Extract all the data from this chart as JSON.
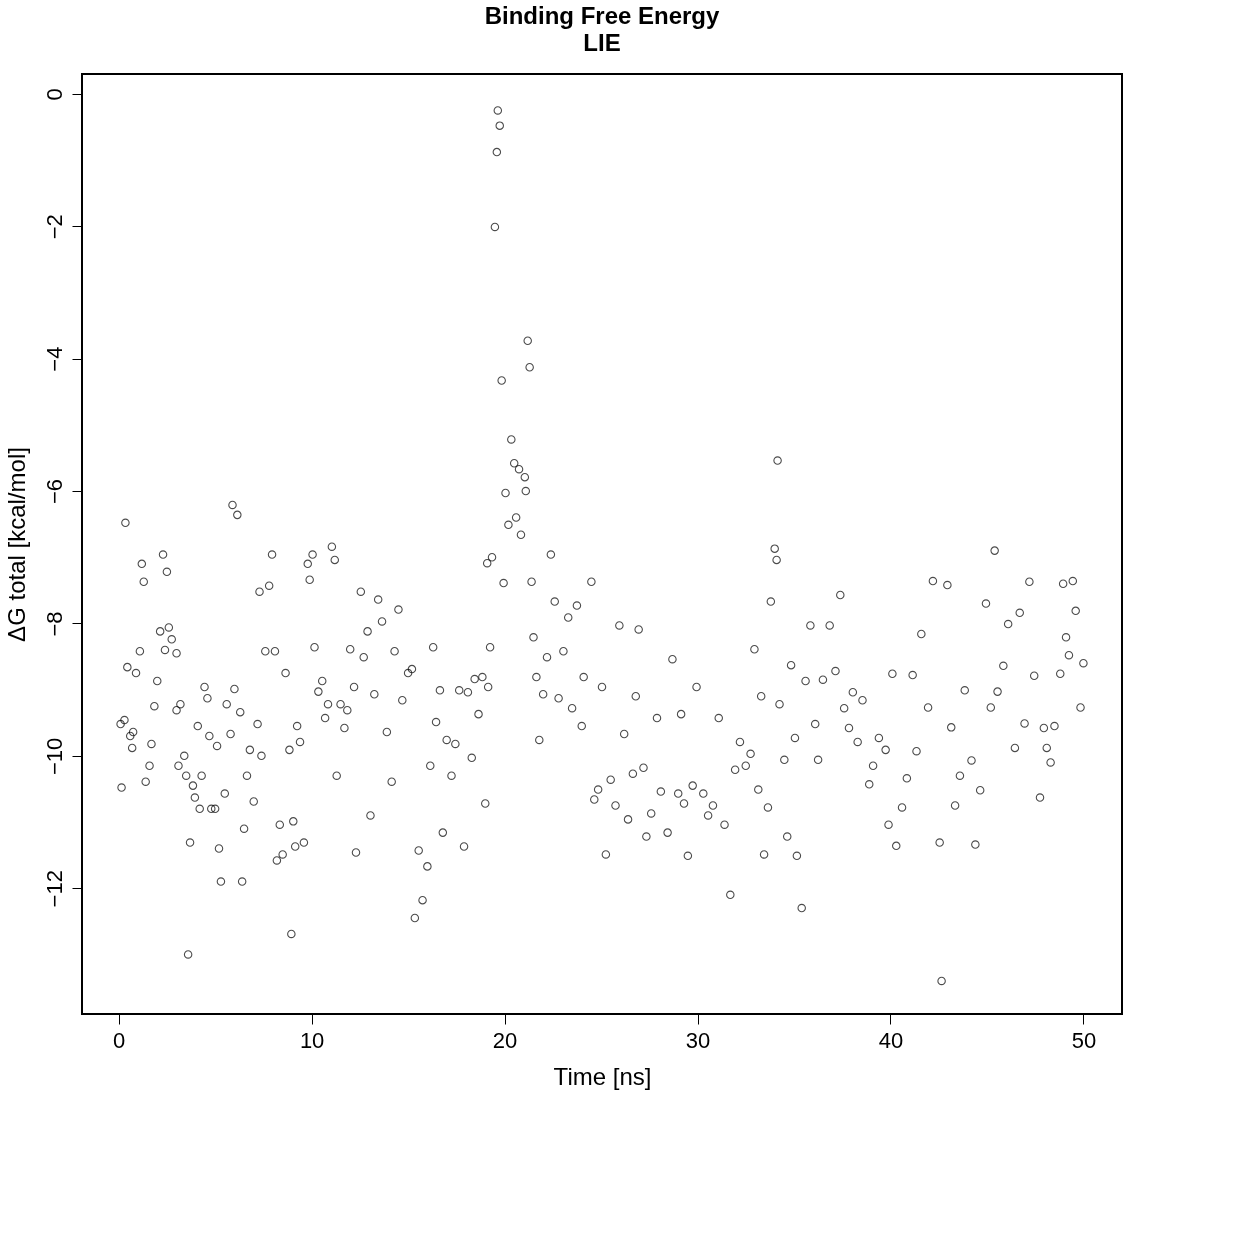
{
  "chart_data": {
    "type": "scatter",
    "title": "Binding Free Energy",
    "subtitle": "LIE",
    "xlabel": "Time [ns]",
    "ylabel": "ΔG total [kcal/mol]",
    "xlim": [
      -1.9,
      52.0
    ],
    "ylim": [
      -13.9,
      0.3
    ],
    "xticks": [
      0,
      10,
      20,
      30,
      40,
      50
    ],
    "yticks": [
      0,
      -2,
      -4,
      -6,
      -8,
      -10,
      -12
    ],
    "grid": false,
    "legend": false,
    "marker": "circle",
    "series": [
      {
        "color": "#000000",
        "x": [
          0.15,
          0.1,
          0.3,
          0.35,
          0.45,
          0.6,
          0.75,
          0.7,
          0.9,
          1.1,
          1.2,
          1.3,
          1.4,
          1.6,
          1.7,
          1.85,
          2.0,
          2.15,
          2.3,
          2.4,
          2.5,
          2.6,
          2.75,
          3.0,
          3.0,
          3.2,
          3.1,
          3.4,
          3.5,
          3.7,
          3.6,
          3.85,
          3.95,
          4.1,
          4.2,
          4.3,
          4.45,
          4.6,
          4.7,
          4.8,
          5.0,
          5.1,
          5.2,
          5.3,
          5.5,
          5.6,
          5.8,
          5.9,
          6.0,
          6.15,
          6.3,
          6.4,
          6.5,
          6.65,
          6.8,
          7.0,
          7.2,
          7.3,
          7.4,
          7.6,
          7.8,
          7.95,
          8.1,
          8.2,
          8.35,
          8.5,
          8.65,
          8.85,
          8.95,
          9.05,
          9.15,
          9.25,
          9.4,
          9.6,
          9.8,
          9.9,
          10.05,
          10.15,
          10.35,
          10.55,
          10.7,
          10.85,
          11.05,
          11.2,
          11.3,
          11.5,
          11.7,
          11.85,
          12.0,
          12.2,
          12.3,
          12.55,
          12.7,
          12.9,
          13.05,
          13.25,
          13.45,
          13.65,
          13.9,
          14.15,
          14.3,
          14.5,
          14.7,
          15.0,
          15.2,
          15.35,
          15.55,
          15.75,
          16.0,
          16.15,
          16.3,
          16.45,
          16.65,
          16.8,
          17.0,
          17.25,
          17.45,
          17.65,
          17.9,
          18.1,
          18.3,
          18.45,
          18.65,
          18.85,
          19.0,
          19.15,
          19.25,
          19.1,
          19.35,
          19.5,
          19.6,
          19.65,
          19.75,
          19.85,
          19.95,
          20.05,
          20.2,
          20.35,
          20.5,
          20.6,
          20.75,
          20.85,
          21.05,
          21.1,
          21.2,
          21.3,
          21.4,
          21.5,
          21.65,
          21.8,
          22.0,
          22.2,
          22.4,
          22.6,
          22.8,
          23.05,
          23.3,
          23.5,
          23.75,
          24.0,
          24.1,
          24.5,
          24.65,
          24.85,
          25.05,
          25.25,
          25.5,
          25.75,
          25.95,
          26.2,
          26.4,
          26.65,
          26.8,
          26.95,
          27.2,
          27.35,
          27.6,
          27.9,
          28.1,
          28.45,
          28.7,
          29.0,
          29.15,
          29.3,
          29.5,
          29.75,
          29.95,
          30.3,
          30.55,
          30.8,
          31.1,
          31.4,
          31.7,
          31.95,
          32.2,
          32.5,
          32.75,
          32.95,
          33.15,
          33.3,
          33.45,
          33.65,
          33.8,
          34.0,
          34.1,
          34.15,
          34.25,
          34.5,
          34.65,
          34.85,
          35.05,
          35.15,
          35.4,
          35.6,
          35.85,
          36.1,
          36.25,
          36.5,
          36.85,
          37.15,
          37.4,
          37.6,
          37.85,
          38.05,
          38.3,
          38.55,
          38.9,
          39.1,
          39.4,
          39.75,
          39.9,
          40.1,
          40.3,
          40.6,
          40.85,
          41.15,
          41.35,
          41.6,
          41.95,
          42.2,
          42.55,
          42.65,
          42.95,
          43.15,
          43.35,
          43.6,
          43.85,
          44.2,
          44.4,
          44.65,
          44.95,
          45.2,
          45.4,
          45.55,
          45.85,
          46.1,
          46.45,
          46.7,
          46.95,
          47.2,
          47.45,
          47.75,
          47.95,
          48.1,
          48.3,
          48.5,
          48.8,
          48.95,
          49.1,
          49.25,
          49.45,
          49.6,
          49.85,
          50.0
        ],
        "values": [
          -10.48,
          -9.52,
          -9.46,
          -6.48,
          -8.66,
          -9.7,
          -9.64,
          -9.88,
          -8.75,
          -8.42,
          -7.1,
          -7.37,
          -10.39,
          -10.15,
          -9.82,
          -9.25,
          -8.87,
          -8.12,
          -6.96,
          -8.4,
          -7.22,
          -8.06,
          -8.24,
          -8.45,
          -9.31,
          -9.22,
          -10.15,
          -10.0,
          -10.3,
          -11.31,
          -13.0,
          -10.45,
          -10.63,
          -9.55,
          -10.8,
          -10.3,
          -8.96,
          -9.13,
          -9.7,
          -10.8,
          -10.8,
          -9.85,
          -11.4,
          -11.9,
          -10.57,
          -9.22,
          -9.67,
          -6.21,
          -8.99,
          -6.36,
          -9.34,
          -11.9,
          -11.1,
          -10.3,
          -9.91,
          -10.69,
          -9.52,
          -7.52,
          -10.0,
          -8.42,
          -7.43,
          -6.96,
          -8.42,
          -11.58,
          -11.04,
          -11.49,
          -8.75,
          -9.91,
          -12.69,
          -10.99,
          -11.37,
          -9.55,
          -9.79,
          -11.31,
          -7.1,
          -7.34,
          -6.96,
          -8.36,
          -9.03,
          -8.87,
          -9.43,
          -9.22,
          -6.84,
          -7.04,
          -10.3,
          -9.22,
          -9.58,
          -9.31,
          -8.39,
          -8.96,
          -11.46,
          -7.52,
          -8.51,
          -8.12,
          -10.9,
          -9.07,
          -7.64,
          -7.97,
          -9.64,
          -10.39,
          -8.42,
          -7.79,
          -9.16,
          -8.75,
          -8.69,
          -12.45,
          -11.43,
          -12.18,
          -11.67,
          -10.15,
          -8.36,
          -9.49,
          -9.01,
          -11.16,
          -9.76,
          -10.3,
          -9.82,
          -9.01,
          -11.37,
          -9.04,
          -10.03,
          -8.84,
          -9.37,
          -8.81,
          -10.72,
          -8.96,
          -8.36,
          -7.09,
          -7.0,
          -2.01,
          -0.88,
          -0.25,
          -0.48,
          -4.33,
          -7.39,
          -6.03,
          -6.51,
          -5.22,
          -5.58,
          -6.4,
          -5.67,
          -6.66,
          -5.79,
          -6.0,
          -3.73,
          -4.13,
          -7.37,
          -8.21,
          -8.81,
          -9.76,
          -9.07,
          -8.51,
          -6.96,
          -7.67,
          -9.13,
          -8.42,
          -7.91,
          -9.28,
          -7.73,
          -9.55,
          -8.81,
          -7.37,
          -10.66,
          -10.51,
          -8.96,
          -11.49,
          -10.36,
          -10.75,
          -8.03,
          -9.67,
          -10.96,
          -10.27,
          -9.1,
          -8.09,
          -10.18,
          -11.22,
          -10.87,
          -9.43,
          -10.54,
          -11.16,
          -8.54,
          -10.57,
          -9.37,
          -10.72,
          -11.51,
          -10.45,
          -8.96,
          -10.57,
          -10.9,
          -10.75,
          -9.43,
          -11.04,
          -12.1,
          -10.21,
          -9.79,
          -10.15,
          -9.97,
          -8.39,
          -10.51,
          -9.1,
          -11.49,
          -10.78,
          -7.67,
          -6.87,
          -7.04,
          -5.54,
          -9.22,
          -10.06,
          -11.22,
          -8.63,
          -9.73,
          -11.51,
          -12.3,
          -8.87,
          -8.03,
          -9.52,
          -10.06,
          -8.85,
          -8.03,
          -8.72,
          -7.57,
          -9.28,
          -9.58,
          -9.04,
          -9.79,
          -9.16,
          -10.43,
          -10.15,
          -9.73,
          -9.91,
          -11.04,
          -8.76,
          -11.36,
          -10.78,
          -10.34,
          -8.78,
          -9.93,
          -8.16,
          -9.27,
          -7.36,
          -11.31,
          -13.4,
          -7.42,
          -9.57,
          -10.75,
          -10.3,
          -9.01,
          -10.07,
          -11.34,
          -10.52,
          -7.7,
          -9.27,
          -6.9,
          -9.03,
          -8.64,
          -8.01,
          -9.88,
          -7.84,
          -9.51,
          -7.37,
          -8.79,
          -10.63,
          -9.58,
          -9.88,
          -10.1,
          -9.55,
          -8.76,
          -7.4,
          -8.21,
          -8.48,
          -7.36,
          -7.81,
          -9.27,
          -8.6
        ]
      }
    ]
  }
}
